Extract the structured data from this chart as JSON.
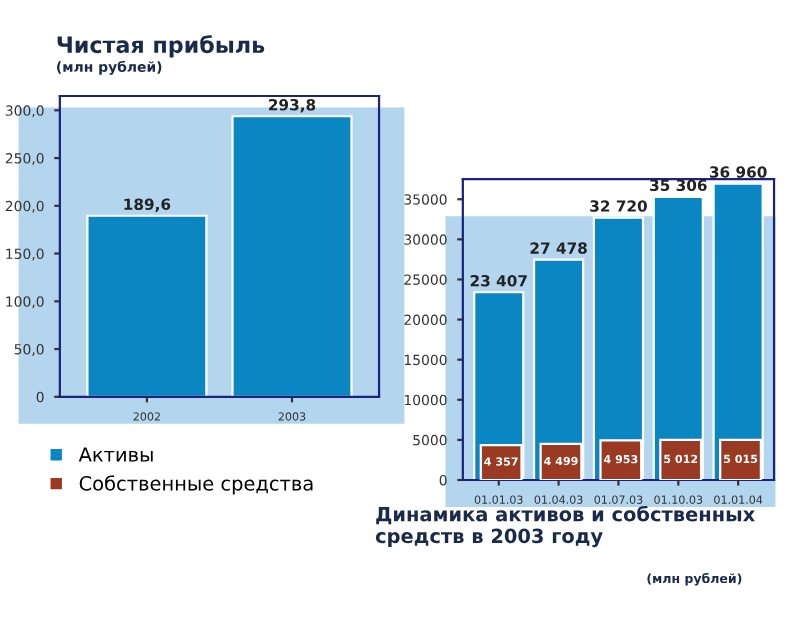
{
  "chart_data": [
    {
      "type": "bar",
      "title": "Чистая прибыль",
      "subtitle": "(млн рублей)",
      "categories": [
        "2002",
        "2003"
      ],
      "series": [
        {
          "color": "#0a86c2",
          "values": [
            189.6,
            293.8
          ],
          "value_labels": [
            "189,6",
            "293,8"
          ]
        }
      ],
      "ylim": [
        0,
        315
      ],
      "yticks": [
        {
          "value": 0,
          "label": "0"
        },
        {
          "value": 50,
          "label": "50,0"
        },
        {
          "value": 100,
          "label": "100,0"
        },
        {
          "value": 150,
          "label": "150,0"
        },
        {
          "value": 200,
          "label": "200,0"
        },
        {
          "value": 250,
          "label": "250,0"
        },
        {
          "value": 300,
          "label": "300,0"
        }
      ],
      "grid": false,
      "legend": false
    },
    {
      "type": "bar",
      "title": "Динамика активов и собственных средств в 2003 году",
      "subtitle": "(млн рублей)",
      "categories": [
        "01.01.03",
        "01.04.03",
        "01.07.03",
        "01.10.03",
        "01.01.04"
      ],
      "series": [
        {
          "name": "Активы",
          "color": "#0a86c2",
          "values": [
            23407,
            27478,
            32720,
            35306,
            36960
          ],
          "value_labels": [
            "23 407",
            "27 478",
            "32 720",
            "35 306",
            "36 960"
          ]
        },
        {
          "name": "Собственные средства",
          "color": "#9b3a22",
          "values": [
            4357,
            4499,
            4953,
            5012,
            5015
          ],
          "value_labels": [
            "4 357",
            "4 499",
            "4 953",
            "5 012",
            "5 015"
          ]
        }
      ],
      "ylim": [
        0,
        37500
      ],
      "yticks": [
        0,
        5000,
        10000,
        15000,
        20000,
        25000,
        30000,
        35000
      ],
      "grid": false,
      "legend": "bottom left"
    }
  ]
}
